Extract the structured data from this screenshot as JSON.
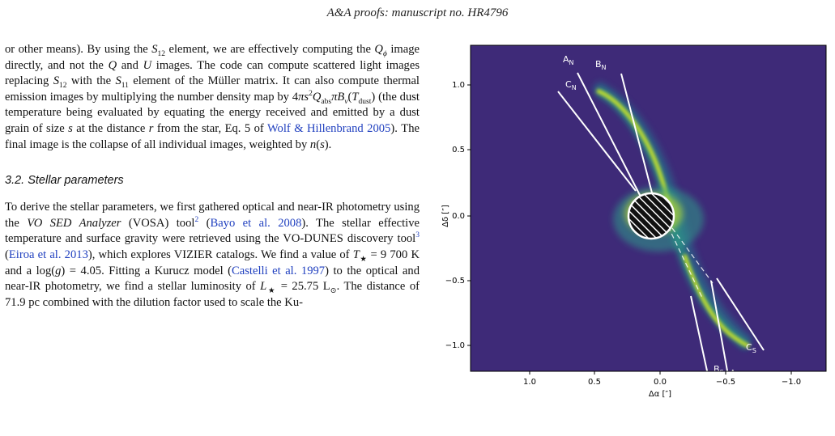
{
  "header": "A&A proofs: manuscript no. HR4796",
  "para1": [
    "or other means). By using the ",
    " element, we are effectively computing the ",
    " image directly, and not the ",
    " and ",
    " images. The code can compute scattered light images replacing ",
    " with the ",
    " element of the Müller matrix. It can also compute thermal emission images by multiplying the number density map by 4",
    " (the dust temperature being evaluated by equating the energy received and emitted by a dust grain of size ",
    " at the distance ",
    " from the star, Eq. 5 of ",
    "Wolf & Hillenbrand 2005",
    "). The final image is the collapse of all individual images, weighted by "
  ],
  "section_title": "3.2. Stellar parameters",
  "para2": [
    "To derive the stellar parameters, we first gathered optical and near-IR photometry using the ",
    "VO SED Analyzer",
    " (VOSA) tool",
    "2",
    " (",
    "Bayo et al. 2008",
    "). The stellar effective temperature and surface gravity were retrieved using the VO-DUNES discovery tool",
    "3",
    " (",
    "Eiroa et al. 2013",
    "), which explores VIZIER catalogs. We find a value of ",
    " = 9 700 K and a log(",
    ") = 4.05. Fitting a Kurucz model (",
    "Castelli et al. 1997",
    ") to the optical and near-IR photometry, we find a stellar luminosity of ",
    " = 25.75 L",
    ". The distance of 71.9 pc combined with the dilution factor used to scale the Ku-"
  ],
  "figure": {
    "ylabel": "Δδ [″]",
    "xlabel": "Δα [″]",
    "yticks": [
      "1.0",
      "0.5",
      "0.0",
      "−0.5",
      "−1.0"
    ],
    "xticks": [
      "1.0",
      "0.5",
      "0.0",
      "−0.5",
      "−1.0"
    ],
    "line_labels": {
      "AN": "A",
      "BN": "B",
      "CN": "C",
      "AS": "A",
      "BS": "B",
      "CS": "C",
      "N": "N",
      "S": "S"
    },
    "colors": {
      "background": "#3e2a78",
      "ring": "#c8e02a",
      "ring_mid": "#22a884",
      "line": "#ffffff"
    }
  }
}
